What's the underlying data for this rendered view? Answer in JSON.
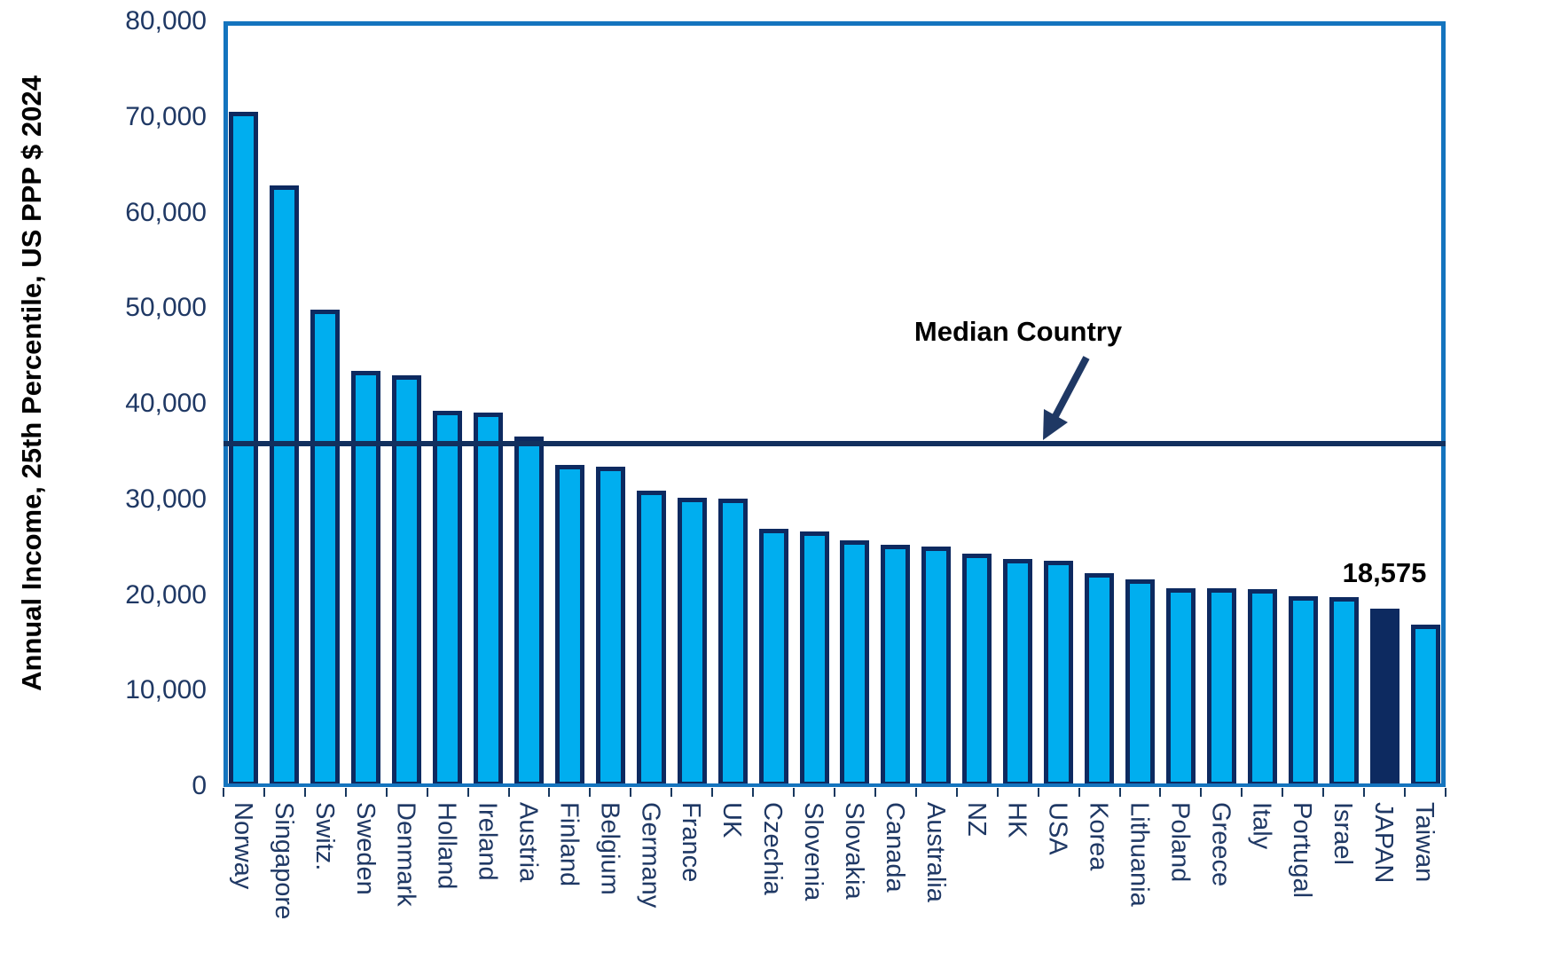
{
  "chart_data": {
    "type": "bar",
    "title": "",
    "ylabel": "Annual Income, 25th Percentile, US PPP $ 2024",
    "xlabel": "",
    "ylim": [
      0,
      80000
    ],
    "ytick_step": 10000,
    "ytick_labels": [
      "0",
      "10,000",
      "20,000",
      "30,000",
      "40,000",
      "50,000",
      "60,000",
      "70,000",
      "80,000"
    ],
    "grid": "horizontal-light-blue",
    "legend": "none",
    "categories": [
      "Norway",
      "Singapore",
      "Switz.",
      "Sweden",
      "Denmark",
      "Holland",
      "Ireland",
      "Austria",
      "Finland",
      "Belgium",
      "Germany",
      "France",
      "UK",
      "Czechia",
      "Slovenia",
      "Slovakia",
      "Canada",
      "Australia",
      "NZ",
      "HK",
      "USA",
      "Korea",
      "Lithuania",
      "Poland",
      "Greece",
      "Italy",
      "Portugal",
      "Israel",
      "JAPAN",
      "Taiwan"
    ],
    "values": [
      70500,
      62800,
      49800,
      43400,
      43000,
      39300,
      39100,
      36600,
      33600,
      33400,
      30900,
      30200,
      30100,
      26900,
      26600,
      25700,
      25200,
      25100,
      24300,
      23800,
      23600,
      22300,
      21600,
      20700,
      20700,
      20600,
      19900,
      19800,
      18575,
      16900
    ],
    "highlight_category": "JAPAN",
    "highlight_value_label": "18,575",
    "median_line": {
      "label": "Median Country",
      "value": 35800
    }
  },
  "colors": {
    "bar_fill": "#00AEEF",
    "bar_outline": "#0D2A60",
    "highlight_bar_fill": "#0D2A60",
    "gridline": "#45C6F4",
    "plot_frame": "#1474BE",
    "median_line": "#12305E",
    "axis_text": "#1F3864",
    "annotation_text": "#000000",
    "arrow": "#1F3864"
  }
}
